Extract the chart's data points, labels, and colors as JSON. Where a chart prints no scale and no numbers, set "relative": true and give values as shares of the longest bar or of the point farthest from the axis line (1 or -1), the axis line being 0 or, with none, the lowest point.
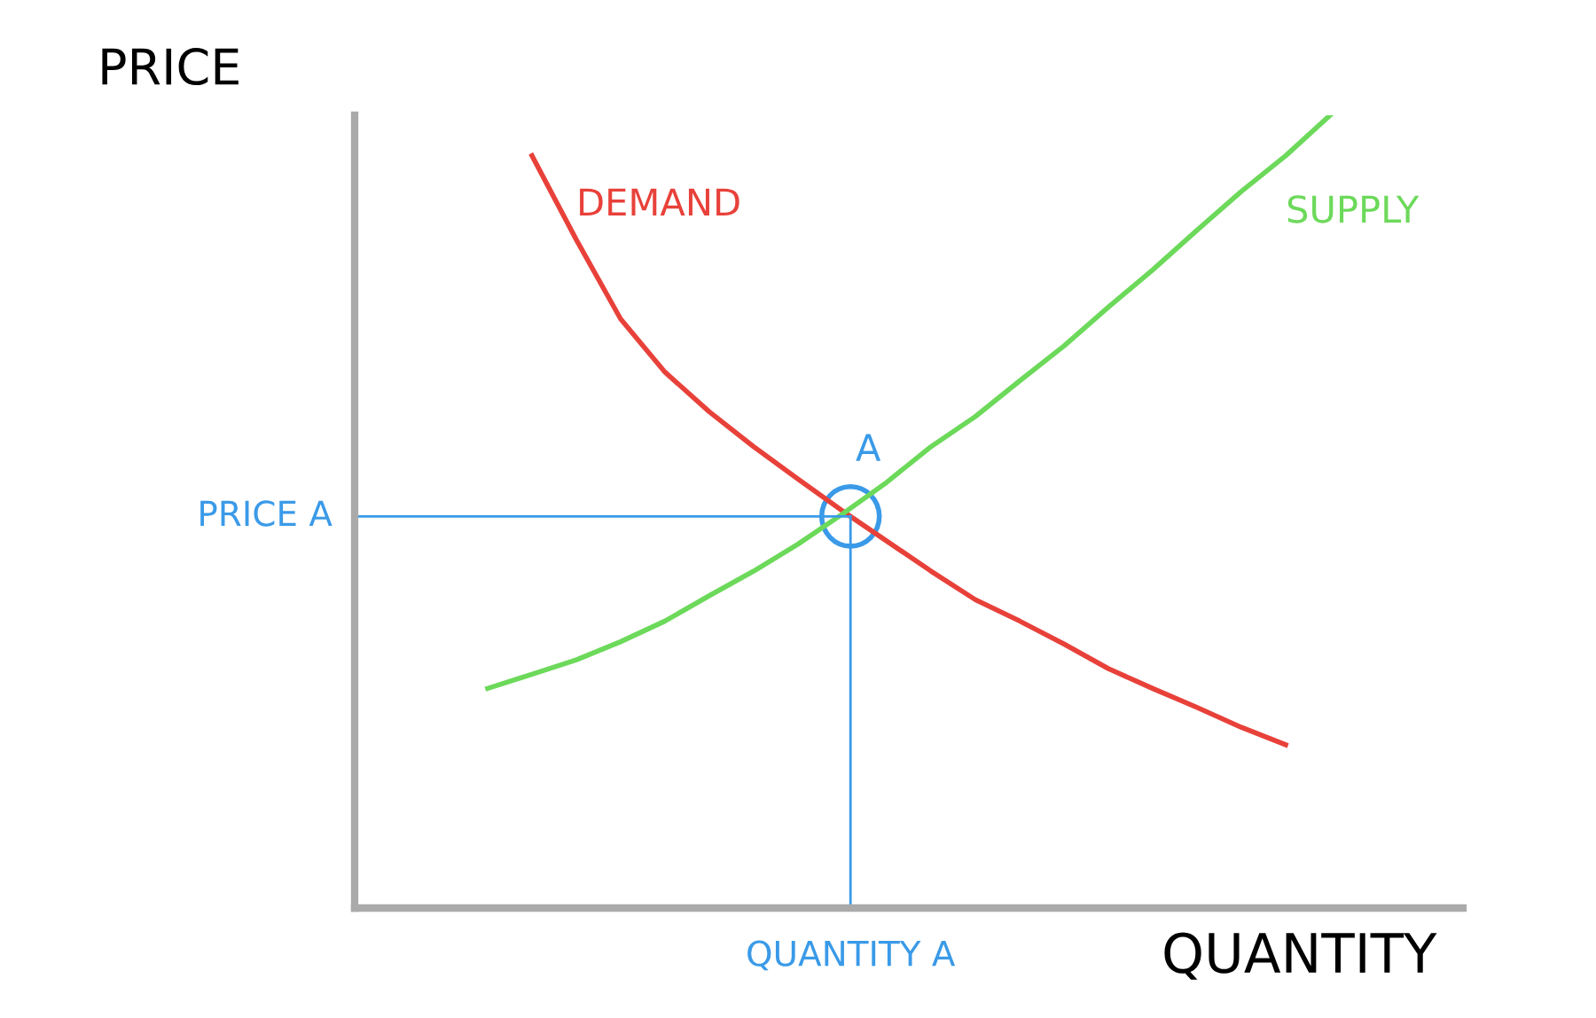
{
  "chart_data": {
    "type": "line",
    "relative": true,
    "xlabel": "QUANTITY",
    "ylabel": "PRICE",
    "categories": [
      null,
      null,
      null,
      null,
      null,
      null,
      null,
      null,
      null,
      null,
      null,
      null,
      null,
      null,
      null,
      null,
      null,
      null,
      null,
      null
    ],
    "series": [
      {
        "name": "DEMAND",
        "color": "#e8413a",
        "values": [
          null,
          0.949,
          0.843,
          0.743,
          0.676,
          0.626,
          0.582,
          0.541,
          0.501,
          0.463,
          0.425,
          0.389,
          0.362,
          0.333,
          0.302,
          0.277,
          0.253,
          0.228,
          0.206,
          null
        ]
      },
      {
        "name": "SUPPLY",
        "color": "#6cd95a",
        "values": [
          0.277,
          0.295,
          0.313,
          0.336,
          0.362,
          0.394,
          0.425,
          0.459,
          0.497,
          0.537,
          0.582,
          0.62,
          0.665,
          0.709,
          0.758,
          0.805,
          0.855,
          0.904,
          0.949,
          1
        ]
      }
    ],
    "ref_lines": [
      {
        "axis": "y",
        "value": 0.494,
        "label": "PRICE A",
        "color": "#3a9ae8"
      }
    ],
    "annotations": [
      {
        "text": "A",
        "y": 0.494
      },
      "QUANTITY A"
    ],
    "legend": false,
    "marker": "none",
    "line_style": "solid"
  }
}
